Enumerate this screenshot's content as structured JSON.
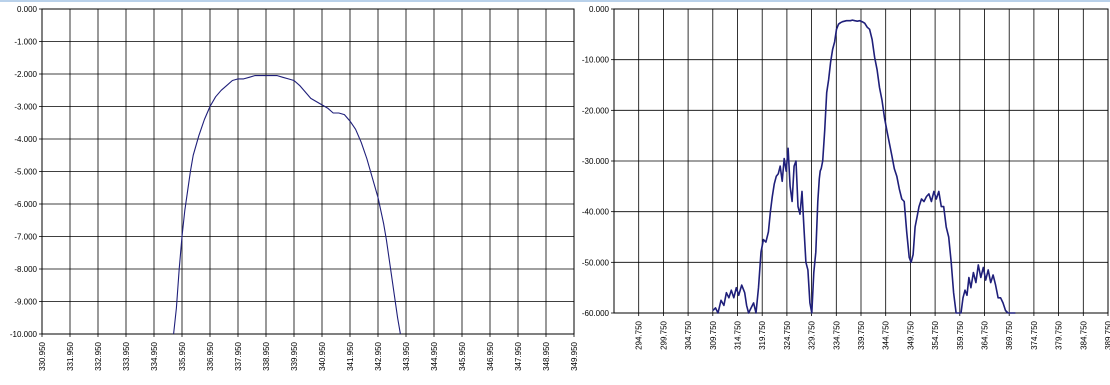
{
  "chart_data": [
    {
      "type": "line",
      "title": "",
      "xlabel": "",
      "ylabel": "",
      "ylim": [
        -10,
        0
      ],
      "xlim": [
        330.95,
        349.95
      ],
      "grid": true,
      "legend": "none",
      "y_ticks": [
        "0.000",
        "-1.000",
        "-2.000",
        "-3.000",
        "-4.000",
        "-5.000",
        "-6.000",
        "-7.000",
        "-8.000",
        "-9.000",
        "-10.000"
      ],
      "x_ticks": [
        "330.950",
        "331.950",
        "332.950",
        "333.950",
        "334.950",
        "335.950",
        "336.950",
        "337.950",
        "338.950",
        "339.950",
        "340.950",
        "341.950",
        "342.950",
        "343.950",
        "344.950",
        "345.950",
        "346.950",
        "347.950",
        "348.950",
        "349.950"
      ],
      "line_color": "#1f1f7a",
      "series": [
        {
          "x": [
            335.65,
            335.75,
            335.85,
            335.95,
            336.05,
            336.15,
            336.25,
            336.35,
            336.55,
            336.75,
            336.95,
            337.15,
            337.35,
            337.55,
            337.75,
            337.95,
            338.15,
            338.35,
            338.55,
            338.75,
            338.95,
            339.15,
            339.35,
            339.55,
            339.75,
            339.95,
            340.15,
            340.35,
            340.55,
            340.75,
            340.95,
            341.15,
            341.35,
            341.55,
            341.75,
            341.95,
            342.15,
            342.35,
            342.55,
            342.75,
            342.95,
            343.05,
            343.15,
            343.25,
            343.35,
            343.45,
            343.55,
            343.65,
            343.75
          ],
          "y": [
            -10.0,
            -9.2,
            -8.0,
            -7.0,
            -6.2,
            -5.6,
            -5.0,
            -4.5,
            -3.9,
            -3.4,
            -3.0,
            -2.7,
            -2.5,
            -2.35,
            -2.2,
            -2.15,
            -2.15,
            -2.1,
            -2.05,
            -2.05,
            -2.05,
            -2.05,
            -2.05,
            -2.1,
            -2.15,
            -2.2,
            -2.35,
            -2.55,
            -2.75,
            -2.85,
            -2.95,
            -3.05,
            -3.2,
            -3.2,
            -3.25,
            -3.45,
            -3.7,
            -4.1,
            -4.6,
            -5.2,
            -5.8,
            -6.2,
            -6.6,
            -7.1,
            -7.7,
            -8.3,
            -8.9,
            -9.5,
            -10.0
          ]
        }
      ]
    },
    {
      "type": "line",
      "title": "",
      "xlabel": "",
      "ylabel": "",
      "ylim": [
        -60,
        0
      ],
      "xlim": [
        289.75,
        389.75
      ],
      "grid": true,
      "legend": "none",
      "y_ticks": [
        "0.000",
        "-10.000",
        "-20.000",
        "-30.000",
        "-40.000",
        "-50.000",
        "-60.000"
      ],
      "x_ticks": [
        "294.750",
        "299.750",
        "304.750",
        "309.750",
        "314.750",
        "319.750",
        "324.750",
        "329.750",
        "334.750",
        "339.750",
        "344.750",
        "349.750",
        "354.750",
        "359.750",
        "364.750",
        "369.750",
        "374.750",
        "379.750",
        "384.750",
        "389.750"
      ],
      "line_color": "#1f1f7a",
      "series": [
        {
          "x": [
            309.75,
            310.3,
            310.8,
            311.4,
            312.0,
            312.5,
            313.0,
            313.5,
            314.0,
            314.5,
            315.0,
            315.6,
            316.2,
            316.6,
            317.0,
            317.5,
            318.0,
            318.5,
            319.0,
            319.5,
            320.0,
            320.5,
            321.0,
            321.4,
            321.8,
            322.2,
            322.6,
            323.0,
            323.4,
            323.8,
            324.2,
            324.6,
            325.0,
            325.4,
            325.8,
            326.2,
            326.6,
            327.0,
            327.4,
            327.8,
            328.2,
            328.6,
            329.0,
            329.4,
            329.8,
            330.2,
            330.6,
            331.0,
            331.3,
            331.5,
            331.7,
            332.0,
            332.4,
            332.8,
            333.2,
            333.6,
            334.0,
            334.4,
            334.8,
            335.2,
            335.6,
            336.0,
            336.4,
            336.8,
            337.2,
            337.6,
            338.0,
            338.5,
            339.0,
            339.5,
            340.0,
            340.5,
            341.0,
            341.5,
            342.0,
            342.5,
            343.0,
            343.5,
            344.0,
            344.5,
            345.0,
            345.5,
            346.0,
            346.5,
            347.0,
            347.5,
            348.0,
            348.5,
            349.0,
            349.5,
            349.9,
            350.3,
            350.7,
            351.1,
            351.5,
            352.0,
            352.5,
            353.0,
            353.5,
            354.0,
            354.5,
            355.0,
            355.5,
            356.0,
            356.5,
            357.0,
            357.5,
            358.0,
            358.5,
            359.0,
            359.5,
            360.0,
            360.4,
            360.8,
            361.2,
            361.6,
            362.0,
            362.5,
            363.0,
            363.5,
            364.0,
            364.5,
            365.0,
            365.5,
            366.0,
            366.5,
            367.0,
            367.5,
            368.0,
            368.5,
            369.0,
            369.5,
            370.0,
            370.5,
            371.0
          ],
          "y": [
            -59.5,
            -59.0,
            -60.0,
            -57.5,
            -58.5,
            -56.0,
            -57.0,
            -55.5,
            -57.0,
            -55.0,
            -56.5,
            -54.5,
            -56.0,
            -58.5,
            -60.0,
            -59.0,
            -58.0,
            -60.0,
            -55.0,
            -48.0,
            -45.5,
            -46.0,
            -44.0,
            -40.0,
            -37.0,
            -34.5,
            -33.0,
            -32.5,
            -31.0,
            -34.0,
            -29.5,
            -32.0,
            -27.5,
            -35.0,
            -38.0,
            -31.0,
            -30.0,
            -39.0,
            -40.5,
            -36.0,
            -43.0,
            -50.0,
            -51.5,
            -58.0,
            -60.0,
            -52.0,
            -48.0,
            -38.0,
            -33.5,
            -32.0,
            -31.5,
            -30.0,
            -24.0,
            -16.5,
            -14.0,
            -10.5,
            -8.0,
            -6.5,
            -4.0,
            -3.0,
            -2.7,
            -2.5,
            -2.4,
            -2.3,
            -2.3,
            -2.3,
            -2.2,
            -2.3,
            -2.4,
            -2.3,
            -2.5,
            -2.8,
            -3.6,
            -4.0,
            -6.0,
            -9.5,
            -12.0,
            -15.5,
            -18.0,
            -21.5,
            -24.0,
            -26.5,
            -29.0,
            -31.5,
            -33.0,
            -35.5,
            -37.5,
            -38.0,
            -44.0,
            -49.0,
            -50.0,
            -48.5,
            -43.0,
            -41.0,
            -39.0,
            -37.5,
            -38.0,
            -37.0,
            -36.5,
            -38.0,
            -36.0,
            -37.5,
            -36.0,
            -39.0,
            -39.0,
            -43.0,
            -45.0,
            -50.0,
            -56.0,
            -60.0,
            -60.0,
            -60.0,
            -57.0,
            -55.5,
            -56.5,
            -53.0,
            -55.0,
            -52.0,
            -54.0,
            -50.5,
            -53.0,
            -51.0,
            -53.5,
            -51.5,
            -54.0,
            -52.5,
            -54.5,
            -57.0,
            -57.0,
            -58.0,
            -59.5,
            -60.0,
            -60.0,
            -60.0,
            -60.0
          ]
        }
      ]
    }
  ]
}
